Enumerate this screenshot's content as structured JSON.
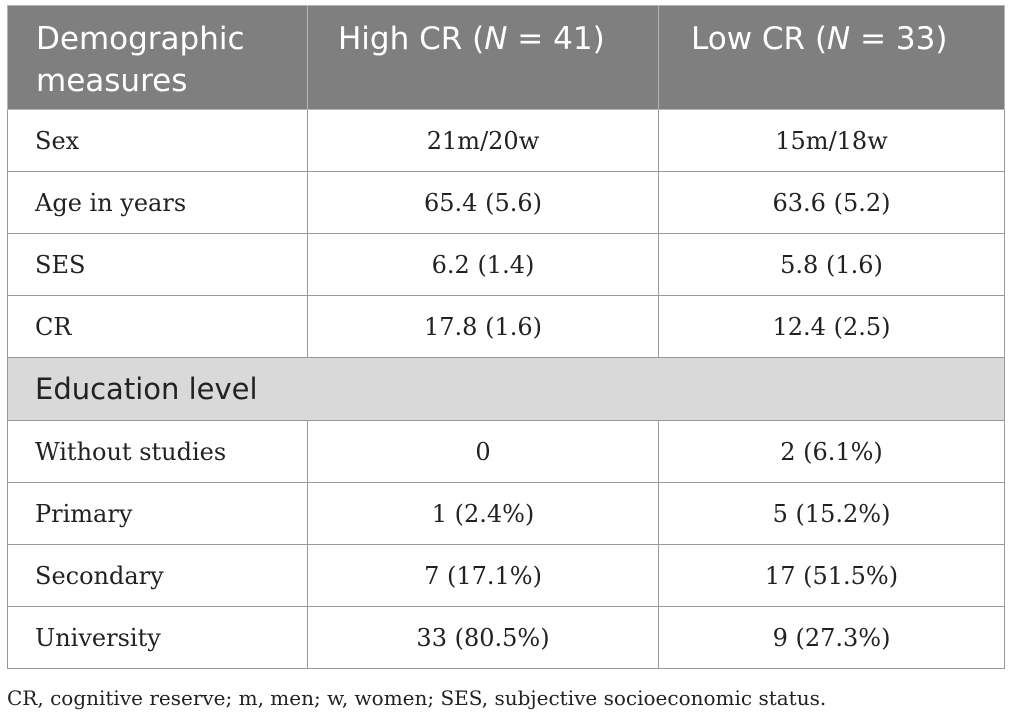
{
  "table": {
    "header": {
      "col1_line1": "Demographic",
      "col1_line2": "measures",
      "col2_prefix": "High CR (",
      "col2_n": "N",
      "col2_suffix": " = 41)",
      "col3_prefix": "Low CR (",
      "col3_n": "N",
      "col3_suffix": " = 33)"
    },
    "rows": [
      {
        "label": "Sex",
        "high": "21m/20w",
        "low": "15m/18w"
      },
      {
        "label": "Age in years",
        "high": "65.4 (5.6)",
        "low": "63.6 (5.2)"
      },
      {
        "label": "SES",
        "high": "6.2 (1.4)",
        "low": "5.8 (1.6)"
      },
      {
        "label": "CR",
        "high": "17.8 (1.6)",
        "low": "12.4 (2.5)"
      }
    ],
    "section_title": "Education level",
    "education_rows": [
      {
        "label": "Without studies",
        "high": "0",
        "low": "2 (6.1%)"
      },
      {
        "label": "Primary",
        "high": "1 (2.4%)",
        "low": "5 (15.2%)"
      },
      {
        "label": "Secondary",
        "high": "7 (17.1%)",
        "low": "17 (51.5%)"
      },
      {
        "label": "University",
        "high": "33 (80.5%)",
        "low": "9 (27.3%)"
      }
    ],
    "colors": {
      "header_bg": "#7f7f7f",
      "section_bg": "#d9d9d9",
      "border": "#9a9a9a"
    }
  },
  "footnote": "CR, cognitive reserve; m, men; w, women; SES, subjective socioeconomic status."
}
